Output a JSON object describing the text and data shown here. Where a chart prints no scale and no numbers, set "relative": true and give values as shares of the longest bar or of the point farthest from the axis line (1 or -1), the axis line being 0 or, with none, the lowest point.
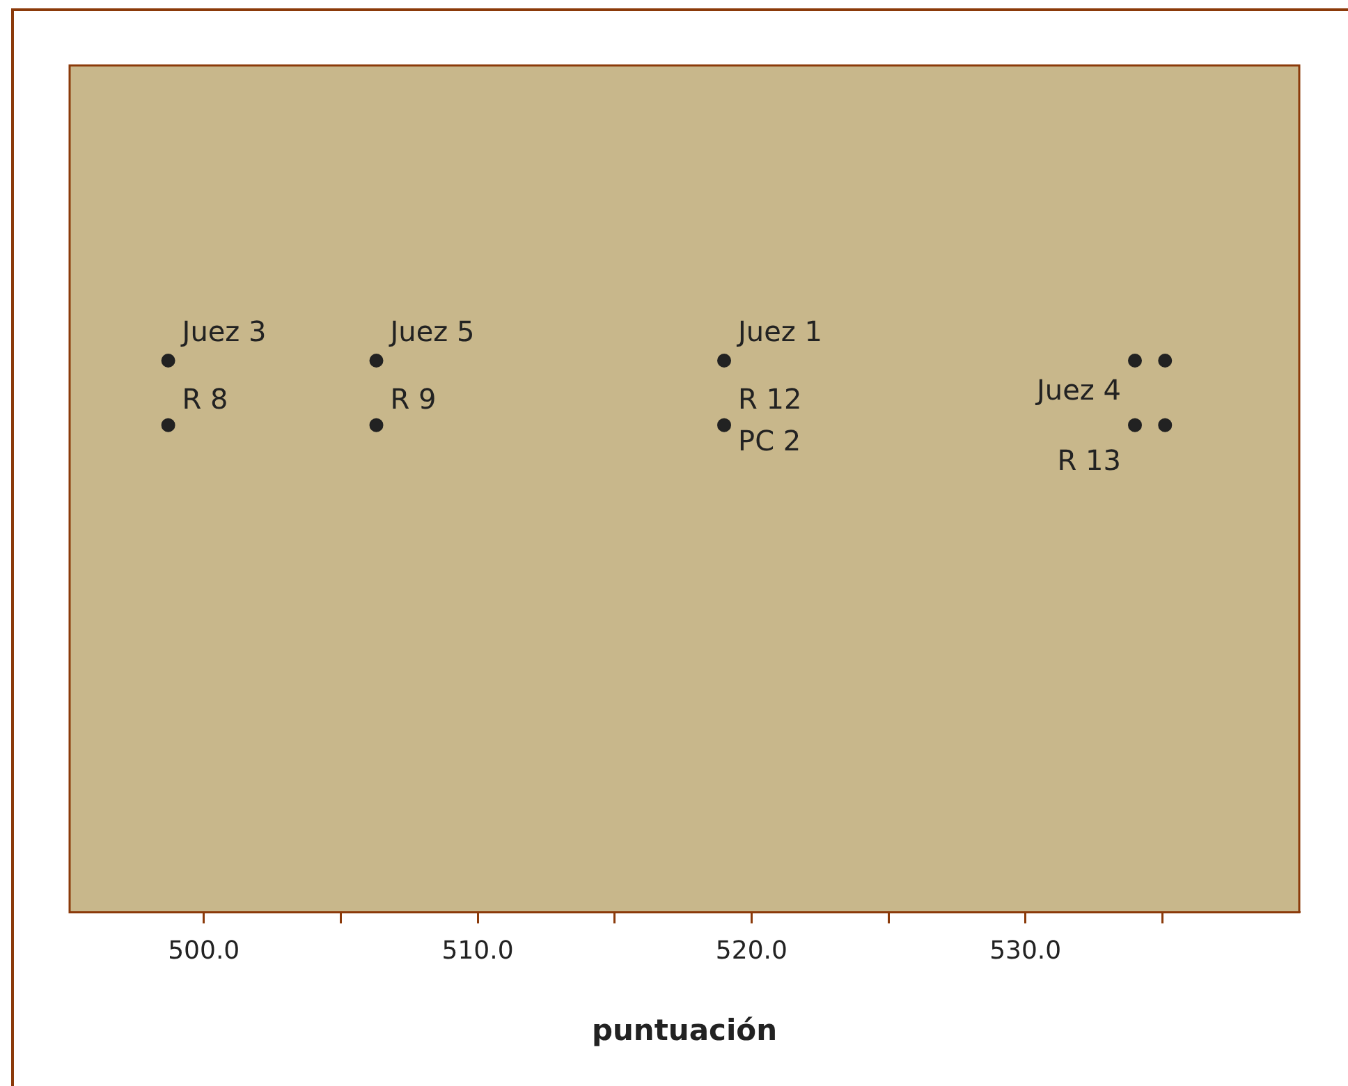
{
  "chart_data": {
    "type": "scatter",
    "relative": true,
    "xlabel": "puntuación",
    "color": "#222222",
    "marker": "circle",
    "x": [
      498.7,
      498.7,
      506.3,
      506.3,
      519.0,
      519.0,
      534.0,
      534.0,
      535.1,
      535.1
    ],
    "values": [
      1,
      0.883,
      1,
      0.883,
      1,
      0.883,
      1,
      0.883,
      1,
      0.883
    ],
    "xlim": [
      495.1,
      540.0
    ],
    "xticks": [
      {
        "value": 500,
        "label": "500.0"
      },
      {
        "value": 505,
        "label": null
      },
      {
        "value": 510,
        "label": "510.0"
      },
      {
        "value": 515,
        "label": null
      },
      {
        "value": 520,
        "label": "520.0"
      },
      {
        "value": 525,
        "label": null
      },
      {
        "value": 530,
        "label": "530.0"
      },
      {
        "value": 535,
        "label": null
      }
    ],
    "tick_labels": "x",
    "grid": false,
    "legend": false,
    "annotations": [
      {
        "text": "Juez 3",
        "x": 498.7,
        "y": 1
      },
      {
        "text": "R 8",
        "x": 498.7,
        "y": 0.883
      },
      {
        "text": "Juez 5",
        "x": 506.3,
        "y": 1
      },
      {
        "text": "R 9",
        "x": 506.3,
        "y": 0.883
      },
      {
        "text": "Juez 1",
        "x": 519.0,
        "y": 1
      },
      {
        "text": "R 12",
        "x": 519.0,
        "y": 0.883
      },
      {
        "text": "PC 2",
        "x": 519.0,
        "y": 0.883
      },
      {
        "text": "Juez 4",
        "x": 534.0,
        "y": 1
      },
      {
        "text": "R 13",
        "x": 534.0,
        "y": 0.883
      }
    ]
  }
}
